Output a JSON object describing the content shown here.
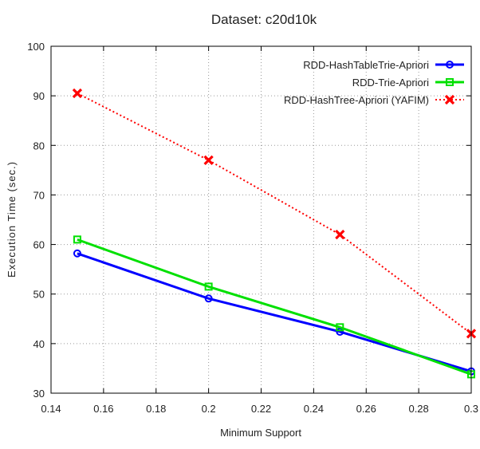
{
  "chart_data": {
    "type": "line",
    "title": "Dataset: c20d10k",
    "xlabel": "Minimum Support",
    "ylabel": "Execution Time (sec.)",
    "xlim": [
      0.14,
      0.3
    ],
    "ylim": [
      30,
      100
    ],
    "xticks": [
      0.14,
      0.16,
      0.18,
      0.2,
      0.22,
      0.24,
      0.26,
      0.28,
      0.3
    ],
    "xtick_labels": [
      "0.14",
      "0.16",
      "0.18",
      "0.2",
      "0.22",
      "0.24",
      "0.26",
      "0.28",
      "0.3"
    ],
    "yticks": [
      30,
      40,
      50,
      60,
      70,
      80,
      90,
      100
    ],
    "ytick_labels": [
      "30",
      "40",
      "50",
      "60",
      "70",
      "80",
      "90",
      "100"
    ],
    "grid": true,
    "legend_position": "top-right",
    "series": [
      {
        "name": "RDD-HashTableTrie-Apriori",
        "color": "#0000ff",
        "marker": "circle",
        "line_style": "solid",
        "x": [
          0.15,
          0.2,
          0.25,
          0.3
        ],
        "y": [
          58.2,
          49.1,
          42.4,
          34.4
        ]
      },
      {
        "name": "RDD-Trie-Apriori",
        "color": "#00e000",
        "marker": "square",
        "line_style": "solid",
        "x": [
          0.15,
          0.2,
          0.25,
          0.3
        ],
        "y": [
          61.0,
          51.5,
          43.3,
          33.8
        ]
      },
      {
        "name": "RDD-HashTree-Apriori (YAFIM)",
        "color": "#ff0000",
        "marker": "cross",
        "line_style": "dotted",
        "x": [
          0.15,
          0.2,
          0.25,
          0.3
        ],
        "y": [
          90.5,
          77.0,
          62.0,
          42.0
        ]
      }
    ]
  }
}
